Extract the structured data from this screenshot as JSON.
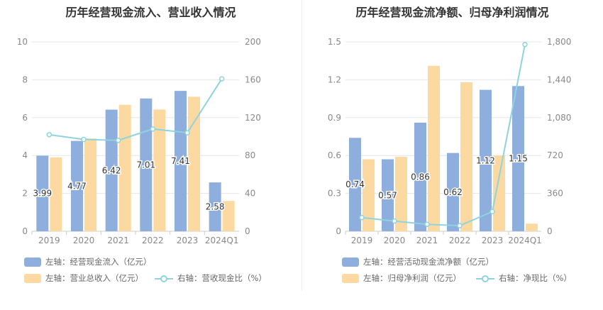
{
  "colors": {
    "bar_primary": "#8eaedd",
    "bar_secondary": "#fdd9a2",
    "line": "#8fd3dc",
    "grid": "#e6e6e6",
    "axis_text": "#888888"
  },
  "chart_data": [
    {
      "type": "bar",
      "title": "历年经营现金流入、营业收入情况",
      "categories": [
        "2019",
        "2020",
        "2021",
        "2022",
        "2023",
        "2024Q1"
      ],
      "left_axis": {
        "ticks": [
          "0",
          "2",
          "4",
          "6",
          "8",
          "10"
        ],
        "ylim": [
          0,
          10
        ]
      },
      "right_axis": {
        "ticks": [
          "0",
          "40",
          "80",
          "120",
          "160",
          "200"
        ],
        "ylim": [
          0,
          200
        ]
      },
      "series": [
        {
          "name": "左轴：经营现金流入（亿元）",
          "type": "bar",
          "axis": "left",
          "values": [
            3.99,
            4.77,
            6.42,
            7.01,
            7.41,
            2.58
          ],
          "labels": [
            "3.99",
            "4.77",
            "6.42",
            "7.01",
            "7.41",
            "2.58"
          ]
        },
        {
          "name": "左轴：营业总收入（亿元）",
          "type": "bar",
          "axis": "left",
          "values": [
            3.9,
            4.9,
            6.68,
            6.43,
            7.1,
            1.6
          ]
        },
        {
          "name": "右轴：营收现金比（%）",
          "type": "line",
          "axis": "right",
          "values": [
            102,
            97,
            96,
            108,
            104,
            161
          ]
        }
      ]
    },
    {
      "type": "bar",
      "title": "历年经营现金流净额、归母净利润情况",
      "categories": [
        "2019",
        "2020",
        "2021",
        "2022",
        "2023",
        "2024Q1"
      ],
      "left_axis": {
        "ticks": [
          "0",
          "0.3",
          "0.6",
          "0.9",
          "1.2",
          "1.5"
        ],
        "ylim": [
          0,
          1.5
        ]
      },
      "right_axis": {
        "ticks": [
          "0",
          "360",
          "720",
          "1,080",
          "1,440",
          "1,800"
        ],
        "ylim": [
          0,
          1800
        ]
      },
      "series": [
        {
          "name": "左轴：经营活动现金流净额（亿元）",
          "type": "bar",
          "axis": "left",
          "values": [
            0.74,
            0.57,
            0.86,
            0.62,
            1.12,
            1.15
          ],
          "labels": [
            "0.74",
            "0.57",
            "0.86",
            "0.62",
            "1.12",
            "1.15"
          ]
        },
        {
          "name": "左轴：归母净利润（亿元）",
          "type": "bar",
          "axis": "left",
          "values": [
            0.57,
            0.59,
            1.31,
            1.18,
            0.6,
            0.06
          ]
        },
        {
          "name": "右轴：净现比（%）",
          "type": "line",
          "axis": "right",
          "values": [
            130,
            97,
            66,
            53,
            187,
            1775
          ]
        }
      ]
    }
  ]
}
